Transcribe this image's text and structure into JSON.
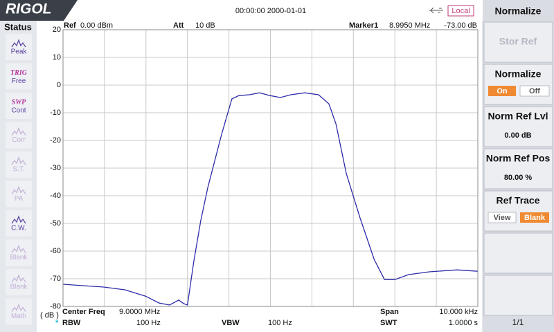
{
  "header": {
    "logo": "RIGOL",
    "datetime": "00:00:00 2000-01-01",
    "remote": "Local"
  },
  "status": {
    "title": "Status",
    "items": [
      {
        "top": null,
        "label": "Peak"
      },
      {
        "top": "TRIG",
        "label": "Free"
      },
      {
        "top": "SWP",
        "label": "Cont"
      },
      {
        "top": null,
        "label": "Corr"
      },
      {
        "top": null,
        "label": "S.T."
      },
      {
        "top": null,
        "label": "PA"
      },
      {
        "top": null,
        "label": "C.W."
      },
      {
        "top": null,
        "label": "Blank"
      },
      {
        "top": null,
        "label": "Blank"
      },
      {
        "top": null,
        "label": "Math"
      }
    ]
  },
  "info": {
    "ref_label": "Ref",
    "ref_value": "0.00 dBm",
    "att_label": "Att",
    "att_value": "10 dB",
    "marker_label": "Marker1",
    "marker_freq": "8.9950 MHz",
    "marker_level": "-73.00 dB"
  },
  "footer": {
    "unit": "( dB )",
    "center_label": "Center Freq",
    "center_value": "9.0000 MHz",
    "span_label": "Span",
    "span_value": "10.000 kHz",
    "rbw_flag": "*",
    "rbw_label": "RBW",
    "rbw_value": "100 Hz",
    "vbw_label": "VBW",
    "vbw_value": "100 Hz",
    "swt_label": "SWT",
    "swt_value": "1.0000 s"
  },
  "chart_data": {
    "type": "line",
    "color": "#2b2ba8",
    "xlim": [
      4,
      14
    ],
    "ylim": [
      -80,
      20
    ],
    "yticks": [
      20,
      10,
      0,
      -10,
      -20,
      -30,
      -40,
      -50,
      -60,
      -70,
      -80
    ],
    "grid": true,
    "x": [
      4.0,
      4.48,
      4.98,
      5.49,
      5.99,
      6.32,
      6.57,
      6.79,
      6.91,
      7.0,
      7.15,
      7.32,
      7.49,
      7.82,
      8.07,
      8.24,
      8.49,
      8.74,
      8.99,
      9.24,
      9.49,
      9.83,
      10.16,
      10.41,
      10.58,
      10.83,
      11.16,
      11.5,
      11.75,
      12.0,
      12.33,
      12.83,
      13.5,
      14.0
    ],
    "values": [
      -72,
      -72.5,
      -73,
      -74,
      -76.3,
      -78.8,
      -79.5,
      -77.7,
      -79,
      -79.5,
      -64,
      -49,
      -37,
      -18,
      -5,
      -3.8,
      -3.5,
      -2.8,
      -3.8,
      -4.5,
      -3.5,
      -2.8,
      -3.5,
      -6.8,
      -14,
      -32,
      -48,
      -63,
      -70.3,
      -70.3,
      -68.5,
      -67.5,
      -66.8,
      -67.3
    ]
  },
  "menu": {
    "title": "Normalize",
    "stor_ref": "Stor Ref",
    "normalize": "Normalize",
    "on": "On",
    "off": "Off",
    "norm_ref_lvl": "Norm Ref Lvl",
    "norm_ref_lvl_value": "0.00 dB",
    "norm_ref_pos": "Norm Ref Pos",
    "norm_ref_pos_value": "80.00 %",
    "ref_trace": "Ref Trace",
    "view": "View",
    "blank": "Blank",
    "page": "1/1"
  }
}
